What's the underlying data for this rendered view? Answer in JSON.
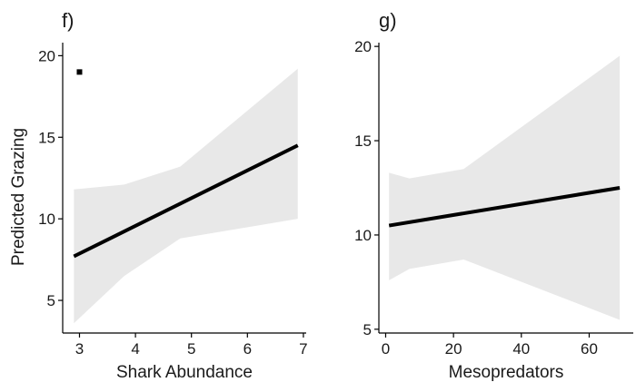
{
  "colors": {
    "line": "#000000",
    "ribbon": "#e8e8e8",
    "background": "#ffffff"
  },
  "chart_data": [
    {
      "type": "line",
      "panel_label": "f)",
      "title": "",
      "xlabel": "Shark Abundance",
      "ylabel": "Predicted Grazing",
      "xlim": [
        2.7,
        7.05
      ],
      "ylim": [
        3.0,
        20.8
      ],
      "xticks": [
        3,
        4,
        5,
        6,
        7
      ],
      "yticks": [
        5,
        10,
        15,
        20
      ],
      "grid": false,
      "legend": "none",
      "series": [
        {
          "x": [
            2.9,
            6.9
          ],
          "y": [
            7.7,
            14.5
          ],
          "ci_x": [
            2.9,
            3.8,
            4.8,
            6.9
          ],
          "ci_upper": [
            11.8,
            12.1,
            13.2,
            19.2
          ],
          "ci_lower": [
            3.6,
            6.5,
            8.8,
            10.0
          ]
        }
      ],
      "annotations": [
        {
          "text": "",
          "marker": "square",
          "x": 3.0,
          "y": 19.0
        }
      ]
    },
    {
      "type": "line",
      "panel_label": "g)",
      "title": "",
      "xlabel": "Mesopredators",
      "ylabel": "",
      "xlim": [
        -2,
        73
      ],
      "ylim": [
        4.8,
        20.2
      ],
      "xticks": [
        0,
        20,
        40,
        60
      ],
      "yticks": [
        5,
        10,
        15,
        20
      ],
      "grid": false,
      "legend": "none",
      "series": [
        {
          "x": [
            1,
            69
          ],
          "y": [
            10.5,
            12.5
          ],
          "ci_x": [
            1,
            7,
            23,
            69
          ],
          "ci_upper": [
            13.3,
            13.0,
            13.5,
            19.5
          ],
          "ci_lower": [
            7.6,
            8.2,
            8.7,
            5.5
          ]
        }
      ],
      "annotations": []
    }
  ]
}
